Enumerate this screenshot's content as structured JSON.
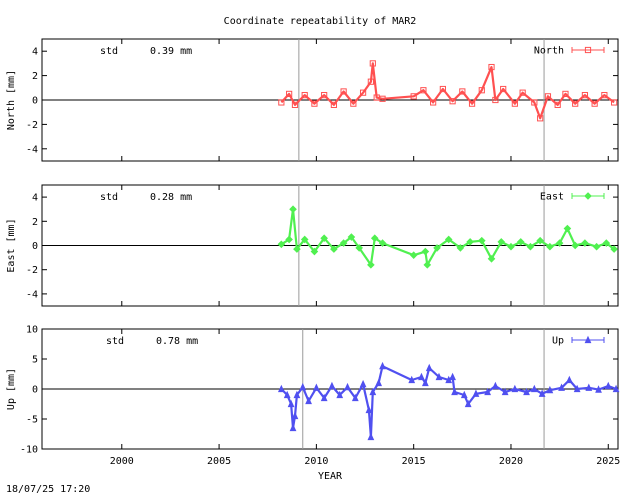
{
  "title": "Coordinate repeatability of MAR2",
  "timestamp": "18/07/25 17:20",
  "chart_data": [
    {
      "type": "line",
      "series": [
        {
          "name": "North",
          "color": "#ff5050",
          "marker": "square"
        }
      ],
      "ylabel": "North [mm]",
      "ylim": [
        -5,
        5
      ],
      "yticks": [
        -4,
        -2,
        0,
        2,
        4
      ],
      "xlim": [
        1995.9,
        2025.5
      ],
      "grid": false,
      "legend": "top-right",
      "std_label": "std",
      "std_value": "0.39 mm",
      "vlines": [
        2009.1,
        2021.7
      ],
      "data": [
        [
          2008.2,
          -0.2
        ],
        [
          2008.6,
          0.5
        ],
        [
          2008.9,
          -0.4
        ],
        [
          2009.4,
          0.4
        ],
        [
          2009.9,
          -0.3
        ],
        [
          2010.4,
          0.4
        ],
        [
          2010.9,
          -0.4
        ],
        [
          2011.4,
          0.7
        ],
        [
          2011.9,
          -0.3
        ],
        [
          2012.4,
          0.6
        ],
        [
          2012.8,
          1.5
        ],
        [
          2012.9,
          3.0
        ],
        [
          2013.1,
          0.2
        ],
        [
          2013.4,
          0.1
        ],
        [
          2015.0,
          0.3
        ],
        [
          2015.5,
          0.8
        ],
        [
          2016.0,
          -0.2
        ],
        [
          2016.5,
          0.9
        ],
        [
          2017.0,
          -0.1
        ],
        [
          2017.5,
          0.7
        ],
        [
          2018.0,
          -0.3
        ],
        [
          2018.5,
          0.8
        ],
        [
          2019.0,
          2.7
        ],
        [
          2019.2,
          0.0
        ],
        [
          2019.6,
          0.9
        ],
        [
          2020.2,
          -0.3
        ],
        [
          2020.6,
          0.6
        ],
        [
          2021.2,
          -0.2
        ],
        [
          2021.5,
          -1.5
        ],
        [
          2021.9,
          0.3
        ],
        [
          2022.4,
          -0.4
        ],
        [
          2022.8,
          0.5
        ],
        [
          2023.3,
          -0.3
        ],
        [
          2023.8,
          0.4
        ],
        [
          2024.3,
          -0.3
        ],
        [
          2024.8,
          0.4
        ],
        [
          2025.3,
          -0.2
        ]
      ]
    },
    {
      "type": "line",
      "series": [
        {
          "name": "East",
          "color": "#50f050",
          "marker": "diamond"
        }
      ],
      "ylabel": "East [mm]",
      "ylim": [
        -5,
        5
      ],
      "yticks": [
        -4,
        -2,
        0,
        2,
        4
      ],
      "xlim": [
        1995.9,
        2025.5
      ],
      "grid": false,
      "legend": "top-right",
      "std_label": "std",
      "std_value": "0.28 mm",
      "vlines": [
        2009.1,
        2021.7
      ],
      "data": [
        [
          2008.2,
          0.1
        ],
        [
          2008.6,
          0.5
        ],
        [
          2008.8,
          3.0
        ],
        [
          2009.0,
          -0.3
        ],
        [
          2009.4,
          0.5
        ],
        [
          2009.9,
          -0.5
        ],
        [
          2010.4,
          0.6
        ],
        [
          2010.9,
          -0.3
        ],
        [
          2011.4,
          0.2
        ],
        [
          2011.8,
          0.7
        ],
        [
          2012.2,
          -0.2
        ],
        [
          2012.8,
          -1.6
        ],
        [
          2013.0,
          0.6
        ],
        [
          2013.4,
          0.2
        ],
        [
          2015.0,
          -0.8
        ],
        [
          2015.6,
          -0.5
        ],
        [
          2015.7,
          -1.6
        ],
        [
          2016.2,
          -0.2
        ],
        [
          2016.8,
          0.5
        ],
        [
          2017.4,
          -0.2
        ],
        [
          2017.9,
          0.3
        ],
        [
          2018.5,
          0.4
        ],
        [
          2019.0,
          -1.1
        ],
        [
          2019.5,
          0.3
        ],
        [
          2020.0,
          -0.1
        ],
        [
          2020.5,
          0.3
        ],
        [
          2021.0,
          -0.1
        ],
        [
          2021.5,
          0.4
        ],
        [
          2022.0,
          -0.1
        ],
        [
          2022.5,
          0.2
        ],
        [
          2022.9,
          1.4
        ],
        [
          2023.3,
          0.0
        ],
        [
          2023.8,
          0.2
        ],
        [
          2024.4,
          -0.1
        ],
        [
          2024.9,
          0.2
        ],
        [
          2025.3,
          -0.3
        ]
      ]
    },
    {
      "type": "line",
      "series": [
        {
          "name": "Up",
          "color": "#5050f0",
          "marker": "triangle"
        }
      ],
      "ylabel": "Up [mm]",
      "ylim": [
        -10,
        10
      ],
      "yticks": [
        -10,
        -5,
        0,
        5,
        10
      ],
      "xlim": [
        1995.9,
        2025.5
      ],
      "xticks": [
        2000,
        2005,
        2010,
        2015,
        2020,
        2025
      ],
      "xlabel": "YEAR",
      "grid": false,
      "legend": "top-right",
      "std_label": "std",
      "std_value": "0.78 mm",
      "vlines": [
        2009.3,
        2021.7
      ],
      "data": [
        [
          2008.2,
          0.0
        ],
        [
          2008.5,
          -1.0
        ],
        [
          2008.7,
          -2.5
        ],
        [
          2008.8,
          -6.5
        ],
        [
          2008.9,
          -4.5
        ],
        [
          2009.0,
          -1.0
        ],
        [
          2009.3,
          0.3
        ],
        [
          2009.6,
          -2.0
        ],
        [
          2010.0,
          0.2
        ],
        [
          2010.4,
          -1.5
        ],
        [
          2010.8,
          0.5
        ],
        [
          2011.2,
          -1.0
        ],
        [
          2011.6,
          0.3
        ],
        [
          2012.0,
          -1.5
        ],
        [
          2012.4,
          0.8
        ],
        [
          2012.7,
          -3.5
        ],
        [
          2012.8,
          -8.0
        ],
        [
          2012.9,
          -0.5
        ],
        [
          2013.2,
          1.0
        ],
        [
          2013.4,
          3.8
        ],
        [
          2014.9,
          1.5
        ],
        [
          2015.4,
          2.0
        ],
        [
          2015.6,
          1.0
        ],
        [
          2015.8,
          3.5
        ],
        [
          2016.3,
          2.0
        ],
        [
          2016.8,
          1.5
        ],
        [
          2017.0,
          2.0
        ],
        [
          2017.1,
          -0.5
        ],
        [
          2017.6,
          -1.0
        ],
        [
          2017.8,
          -2.5
        ],
        [
          2018.2,
          -0.8
        ],
        [
          2018.8,
          -0.5
        ],
        [
          2019.2,
          0.5
        ],
        [
          2019.7,
          -0.5
        ],
        [
          2020.2,
          0.0
        ],
        [
          2020.8,
          -0.5
        ],
        [
          2021.2,
          0.0
        ],
        [
          2021.6,
          -0.8
        ],
        [
          2022.0,
          -0.2
        ],
        [
          2022.6,
          0.2
        ],
        [
          2023.0,
          1.5
        ],
        [
          2023.4,
          0.0
        ],
        [
          2024.0,
          0.2
        ],
        [
          2024.5,
          -0.1
        ],
        [
          2025.0,
          0.5
        ],
        [
          2025.4,
          0.0
        ]
      ]
    }
  ]
}
